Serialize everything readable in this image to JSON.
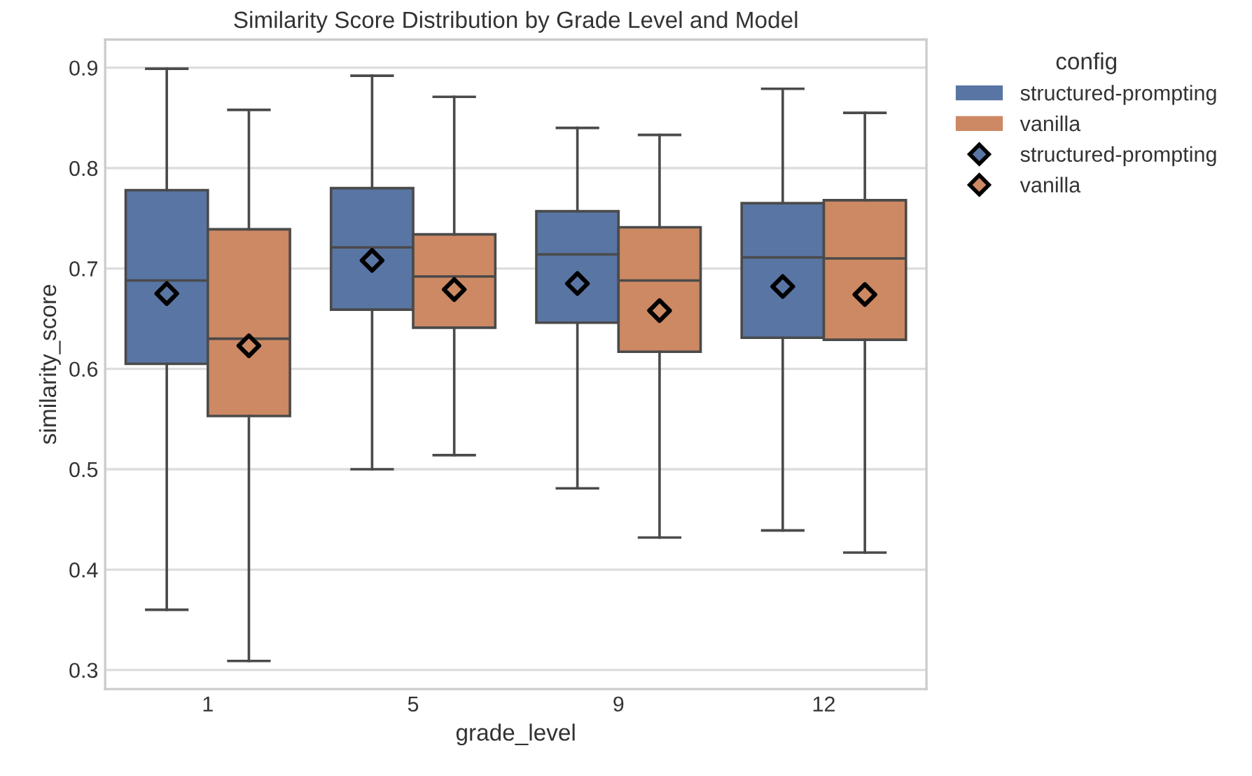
{
  "chart_data": {
    "type": "box",
    "title": "Similarity Score Distribution by Grade Level and Model",
    "xlabel": "grade_level",
    "ylabel": "similarity_score",
    "legend_title": "config",
    "categories": [
      "1",
      "5",
      "9",
      "12"
    ],
    "series": [
      {
        "name": "structured-prompting",
        "color": "#5975a4",
        "boxes": [
          {
            "low": 0.36,
            "q1": 0.605,
            "median": 0.688,
            "q3": 0.778,
            "high": 0.899,
            "mean": 0.675
          },
          {
            "low": 0.5,
            "q1": 0.659,
            "median": 0.721,
            "q3": 0.78,
            "high": 0.892,
            "mean": 0.708
          },
          {
            "low": 0.481,
            "q1": 0.646,
            "median": 0.714,
            "q3": 0.757,
            "high": 0.84,
            "mean": 0.685
          },
          {
            "low": 0.439,
            "q1": 0.631,
            "median": 0.711,
            "q3": 0.765,
            "high": 0.879,
            "mean": 0.682
          }
        ]
      },
      {
        "name": "vanilla",
        "color": "#cc8963",
        "boxes": [
          {
            "low": 0.309,
            "q1": 0.553,
            "median": 0.63,
            "q3": 0.739,
            "high": 0.858,
            "mean": 0.623
          },
          {
            "low": 0.514,
            "q1": 0.641,
            "median": 0.692,
            "q3": 0.734,
            "high": 0.871,
            "mean": 0.679
          },
          {
            "low": 0.432,
            "q1": 0.617,
            "median": 0.688,
            "q3": 0.741,
            "high": 0.833,
            "mean": 0.658
          },
          {
            "low": 0.417,
            "q1": 0.629,
            "median": 0.71,
            "q3": 0.768,
            "high": 0.855,
            "mean": 0.674
          }
        ]
      }
    ],
    "ylim": [
      0.281,
      0.928
    ],
    "yticks": [
      0.3,
      0.4,
      0.5,
      0.6,
      0.7,
      0.8,
      0.9
    ],
    "grid": "y",
    "legend": "top right",
    "marker": "diamond"
  }
}
